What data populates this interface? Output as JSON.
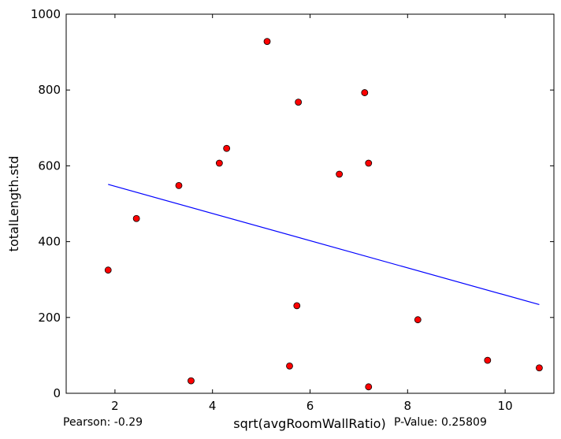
{
  "chart_data": {
    "type": "scatter",
    "xlabel": "sqrt(avgRoomWallRatio)",
    "ylabel": "totalLength.std",
    "xlim": [
      1,
      11
    ],
    "ylim": [
      0,
      1000
    ],
    "xticks": [
      2,
      4,
      6,
      8,
      10
    ],
    "yticks": [
      0,
      200,
      400,
      600,
      800,
      1000
    ],
    "grid": false,
    "points": [
      {
        "x": 1.86,
        "y": 325
      },
      {
        "x": 2.44,
        "y": 461
      },
      {
        "x": 3.31,
        "y": 548
      },
      {
        "x": 3.56,
        "y": 33
      },
      {
        "x": 4.14,
        "y": 607
      },
      {
        "x": 4.29,
        "y": 646
      },
      {
        "x": 5.12,
        "y": 928
      },
      {
        "x": 5.58,
        "y": 72
      },
      {
        "x": 5.73,
        "y": 231
      },
      {
        "x": 5.76,
        "y": 768
      },
      {
        "x": 6.6,
        "y": 578
      },
      {
        "x": 7.12,
        "y": 793
      },
      {
        "x": 7.2,
        "y": 607
      },
      {
        "x": 7.2,
        "y": 17
      },
      {
        "x": 8.21,
        "y": 194
      },
      {
        "x": 9.64,
        "y": 87
      },
      {
        "x": 10.7,
        "y": 67
      }
    ],
    "fit_line": {
      "x": [
        1.86,
        10.7
      ],
      "y": [
        551,
        234
      ]
    },
    "marker_color": "#ff0000",
    "line_color": "#0000ff"
  },
  "stats": {
    "pearson": "Pearson: -0.29",
    "pvalue": "P-Value: 0.25809"
  }
}
